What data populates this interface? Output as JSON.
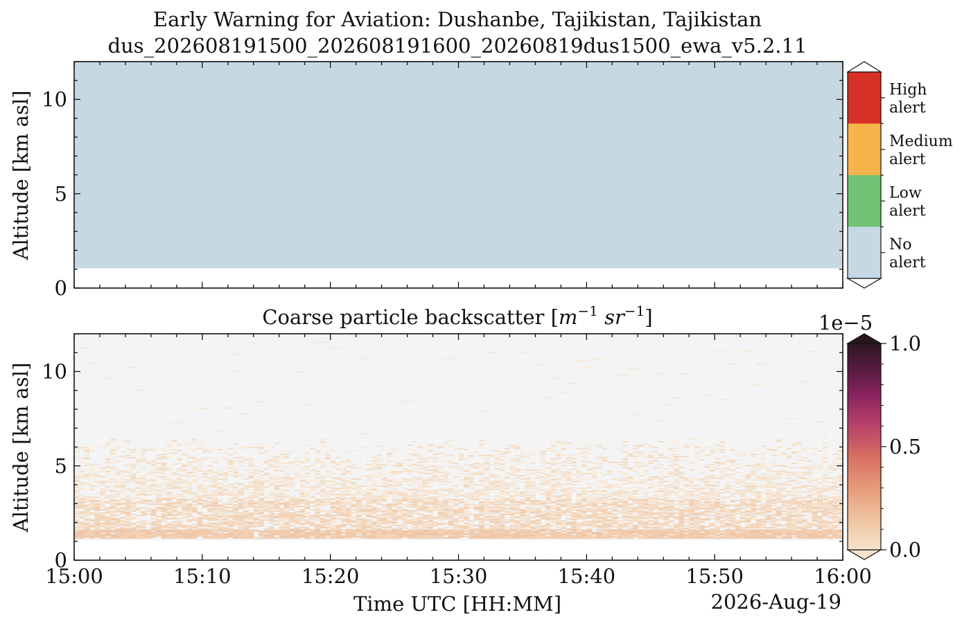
{
  "figure": {
    "title_line1": "Early Warning for Aviation: Dushanbe, Tajikistan, Tajikistan",
    "title_line2": "dus_202608191500_202608191600_20260819dus1500_ewa_v5.2.11",
    "xlabel": "Time UTC [HH:MM]",
    "date_label": "2026-Aug-19"
  },
  "chart_data": [
    {
      "type": "heatmap",
      "panel": "alert",
      "title": "",
      "ylabel": "Altitude [km asl]",
      "ylim": [
        0,
        12
      ],
      "yticks": [
        "0",
        "5",
        "10"
      ],
      "xlim": [
        "15:00",
        "16:00"
      ],
      "fill": {
        "altitude_from": 1.05,
        "altitude_to": 12,
        "category": "No alert"
      },
      "colorbar": {
        "categories": [
          {
            "label_line1": "High",
            "label_line2": "alert",
            "color": "#d73027"
          },
          {
            "label_line1": "Medium",
            "label_line2": "alert",
            "color": "#f7b44a"
          },
          {
            "label_line1": "Low",
            "label_line2": "alert",
            "color": "#71c476"
          },
          {
            "label_line1": "No",
            "label_line2": "alert",
            "color": "#c5d8e4"
          }
        ]
      }
    },
    {
      "type": "heatmap",
      "panel": "backscatter",
      "title_prefix": "Coarse particle backscatter [",
      "title_m": "m",
      "title_sr": "sr",
      "title_exp": "−1",
      "title_suffix": "]",
      "ylabel": "Altitude [km asl]",
      "ylim": [
        0,
        12
      ],
      "yticks": [
        "0",
        "5",
        "10"
      ],
      "xticks": [
        "15:00",
        "15:10",
        "15:20",
        "15:30",
        "15:40",
        "15:50",
        "16:00"
      ],
      "xlim": [
        "15:00",
        "16:00"
      ],
      "profile": {
        "ground_km": 1.05,
        "dense_layer_km": [
          1.2,
          1.6
        ],
        "aerosol_top_km": 6.2,
        "max_altitude_km": 12,
        "background_color": "#f4f4f4"
      },
      "colorbar": {
        "multiplier": "1e−5",
        "vmin": 0.0,
        "vmax": 1.0,
        "ticks": [
          "0.0",
          "0.5",
          "1.0"
        ],
        "colormap": [
          "#f6e3cd",
          "#efb58f",
          "#d76f63",
          "#a32c6a",
          "#5a1a45",
          "#2d1522"
        ]
      }
    }
  ]
}
